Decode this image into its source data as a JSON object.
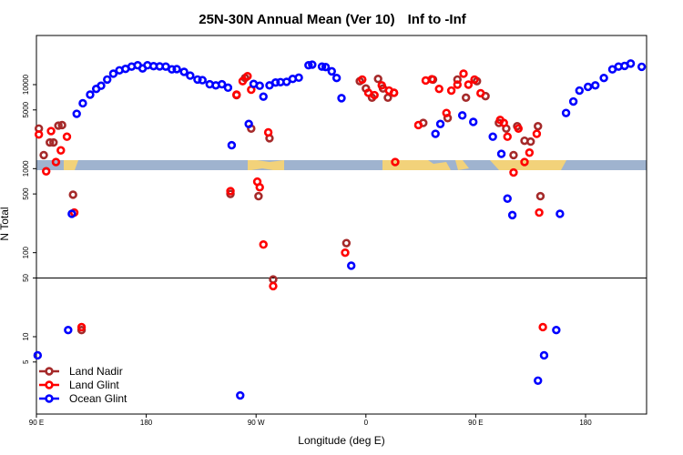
{
  "chart_data": {
    "type": "scatter",
    "title": "25N-30N Annual Mean (Ver 10)",
    "title_range": "Inf to -Inf",
    "xlabel": "Longitude (deg E)",
    "ylabel": "N Total",
    "yscale": "log",
    "x_ticks": [
      {
        "pos": 0,
        "label": "90 E"
      },
      {
        "pos": 90,
        "label": "180"
      },
      {
        "pos": 180,
        "label": "90 W"
      },
      {
        "pos": 270,
        "label": "0"
      },
      {
        "pos": 360,
        "label": "90 E"
      },
      {
        "pos": 450,
        "label": "180"
      }
    ],
    "y_ticks": [
      5,
      10,
      50,
      100,
      500,
      1000,
      5000,
      10000
    ],
    "reference_line": 50,
    "series": [
      {
        "name": "Land Nadir",
        "color": "#a52a2a",
        "points": [
          [
            2,
            3000
          ],
          [
            6,
            1450
          ],
          [
            11,
            2050
          ],
          [
            14,
            2050
          ],
          [
            18,
            3250
          ],
          [
            21,
            3300
          ],
          [
            30,
            490
          ],
          [
            37,
            12
          ],
          [
            159,
            500
          ],
          [
            164,
            7500
          ],
          [
            171,
            12000
          ],
          [
            176,
            3000
          ],
          [
            182,
            470
          ],
          [
            191,
            2300
          ],
          [
            194,
            48
          ],
          [
            254,
            130
          ],
          [
            265,
            11000
          ],
          [
            270,
            9000
          ],
          [
            275,
            7000
          ],
          [
            280,
            11700
          ],
          [
            284,
            9000
          ],
          [
            288,
            7000
          ],
          [
            293,
            8000
          ],
          [
            317,
            3500
          ],
          [
            325,
            11500
          ],
          [
            337,
            4000
          ],
          [
            345,
            11500
          ],
          [
            352,
            7000
          ],
          [
            361,
            11000
          ],
          [
            368,
            7300
          ],
          [
            379,
            3500
          ],
          [
            385,
            3000
          ],
          [
            391,
            1450
          ],
          [
            394,
            3200
          ],
          [
            400,
            2150
          ],
          [
            405,
            2100
          ],
          [
            411,
            3200
          ],
          [
            413,
            470
          ]
        ]
      },
      {
        "name": "Land Glint",
        "color": "#ff0000",
        "points": [
          [
            2,
            2550
          ],
          [
            8,
            930
          ],
          [
            12,
            2800
          ],
          [
            16,
            1200
          ],
          [
            20,
            1650
          ],
          [
            25,
            2400
          ],
          [
            31,
            300
          ],
          [
            37,
            13
          ],
          [
            159,
            540
          ],
          [
            164,
            7600
          ],
          [
            169,
            11000
          ],
          [
            173,
            12600
          ],
          [
            176,
            8700
          ],
          [
            181,
            700
          ],
          [
            183,
            600
          ],
          [
            186,
            125
          ],
          [
            190,
            2700
          ],
          [
            194,
            40
          ],
          [
            253,
            100
          ],
          [
            267,
            11500
          ],
          [
            272,
            8000
          ],
          [
            277,
            7500
          ],
          [
            283,
            9800
          ],
          [
            289,
            8500
          ],
          [
            293,
            8000
          ],
          [
            294,
            1200
          ],
          [
            313,
            3300
          ],
          [
            319,
            11200
          ],
          [
            324,
            11600
          ],
          [
            330,
            8900
          ],
          [
            336,
            4600
          ],
          [
            340,
            8500
          ],
          [
            345,
            10000
          ],
          [
            350,
            13500
          ],
          [
            354,
            10000
          ],
          [
            359,
            11500
          ],
          [
            364,
            7900
          ],
          [
            380,
            3800
          ],
          [
            383,
            3500
          ],
          [
            386,
            2400
          ],
          [
            391,
            900
          ],
          [
            395,
            3000
          ],
          [
            400,
            1200
          ],
          [
            404,
            1550
          ],
          [
            410,
            2600
          ],
          [
            412,
            300
          ],
          [
            415,
            13
          ]
        ]
      },
      {
        "name": "Ocean Glint",
        "color": "#0000ff",
        "points": [
          [
            1,
            6
          ],
          [
            26,
            12
          ],
          [
            29,
            290
          ],
          [
            33,
            4500
          ],
          [
            38,
            6000
          ],
          [
            44,
            7600
          ],
          [
            49,
            8900
          ],
          [
            53,
            9700
          ],
          [
            58,
            11500
          ],
          [
            63,
            13500
          ],
          [
            68,
            14800
          ],
          [
            73,
            15400
          ],
          [
            78,
            16400
          ],
          [
            83,
            17000
          ],
          [
            87,
            15600
          ],
          [
            91,
            17000
          ],
          [
            96,
            16600
          ],
          [
            101,
            16500
          ],
          [
            106,
            16400
          ],
          [
            111,
            15200
          ],
          [
            115,
            15300
          ],
          [
            121,
            14200
          ],
          [
            126,
            12800
          ],
          [
            132,
            11500
          ],
          [
            136,
            11300
          ],
          [
            142,
            10100
          ],
          [
            147,
            9800
          ],
          [
            152,
            10100
          ],
          [
            157,
            9200
          ],
          [
            160,
            1900
          ],
          [
            167,
            2
          ],
          [
            174,
            3400
          ],
          [
            178,
            10200
          ],
          [
            183,
            9700
          ],
          [
            186,
            7200
          ],
          [
            191,
            9800
          ],
          [
            196,
            10600
          ],
          [
            200,
            10700
          ],
          [
            205,
            10800
          ],
          [
            210,
            11700
          ],
          [
            215,
            12100
          ],
          [
            223,
            17000
          ],
          [
            226,
            17300
          ],
          [
            234,
            16400
          ],
          [
            237,
            16200
          ],
          [
            242,
            14400
          ],
          [
            246,
            12000
          ],
          [
            250,
            6900
          ],
          [
            258,
            70
          ],
          [
            327,
            2600
          ],
          [
            331,
            3400
          ],
          [
            349,
            4300
          ],
          [
            358,
            3600
          ],
          [
            374,
            2400
          ],
          [
            381,
            1500
          ],
          [
            386,
            440
          ],
          [
            390,
            280
          ],
          [
            411,
            3
          ],
          [
            416,
            6
          ],
          [
            426,
            12
          ],
          [
            429,
            290
          ],
          [
            434,
            4600
          ],
          [
            440,
            6300
          ],
          [
            445,
            8500
          ],
          [
            452,
            9400
          ],
          [
            458,
            9800
          ],
          [
            465,
            12000
          ],
          [
            472,
            15200
          ],
          [
            477,
            16400
          ],
          [
            482,
            16700
          ],
          [
            487,
            17800
          ],
          [
            496,
            16300
          ]
        ]
      }
    ],
    "legend": {
      "position": "bottom-left",
      "entries": [
        "Land Nadir",
        "Land Glint",
        "Ocean Glint"
      ]
    }
  }
}
